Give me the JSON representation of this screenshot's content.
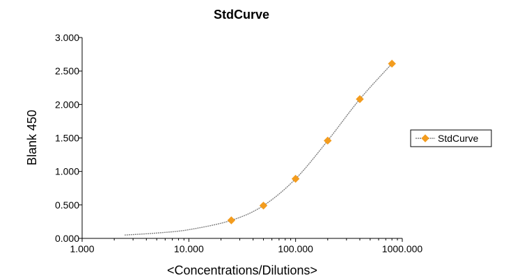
{
  "chart_data": {
    "type": "scatter",
    "title": "StdCurve",
    "xlabel": "<Concentrations/Dilutions>",
    "ylabel": "Blank 450",
    "x_scale": "log",
    "xlim": [
      1,
      1000
    ],
    "ylim": [
      0,
      3
    ],
    "x_ticks": [
      "1.000",
      "10.000",
      "100.000",
      "1000.000"
    ],
    "y_ticks": [
      "0.000",
      "0.500",
      "1.000",
      "1.500",
      "2.000",
      "2.500",
      "3.000"
    ],
    "grid": false,
    "legend_position": "right",
    "series": [
      {
        "name": "StdCurve",
        "color": "#f39c1e",
        "marker": "diamond",
        "points": [
          {
            "x": 25,
            "y": 0.27
          },
          {
            "x": 50,
            "y": 0.49
          },
          {
            "x": 100,
            "y": 0.89
          },
          {
            "x": 200,
            "y": 1.46
          },
          {
            "x": 400,
            "y": 2.08
          },
          {
            "x": 800,
            "y": 2.61
          }
        ],
        "fit_curve": [
          {
            "x": 2.5,
            "y": 0.05
          },
          {
            "x": 5,
            "y": 0.08
          },
          {
            "x": 10,
            "y": 0.13
          },
          {
            "x": 25,
            "y": 0.27
          },
          {
            "x": 50,
            "y": 0.49
          },
          {
            "x": 100,
            "y": 0.89
          },
          {
            "x": 200,
            "y": 1.46
          },
          {
            "x": 400,
            "y": 2.08
          },
          {
            "x": 800,
            "y": 2.61
          }
        ]
      }
    ]
  }
}
